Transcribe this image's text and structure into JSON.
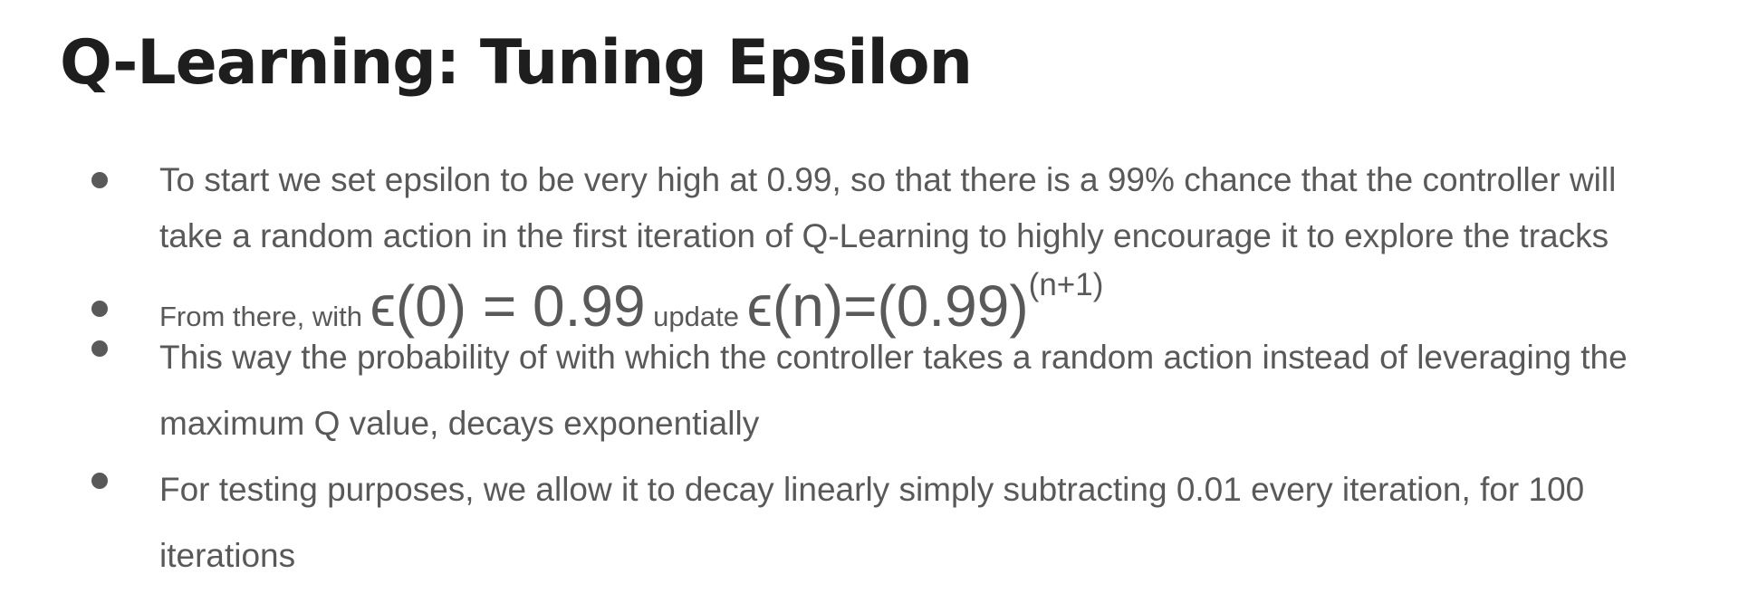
{
  "slide": {
    "title": "Q-Learning: Tuning Epsilon",
    "bullets": {
      "b1": {
        "line1": "To start we set epsilon to be very high at 0.99, so that there is a 99% chance that the controller will",
        "line2": "take a random action in the first iteration of Q-Learning to highly encourage it to explore the tracks"
      },
      "b2": {
        "prefix": "From there, with ",
        "formula1": "ϵ(0) = 0.99",
        "middle": " update ",
        "formula2": "ϵ(n)=(0.99)",
        "superscript": "(n+1)"
      },
      "b3": {
        "line1": "This way the probability of with which the controller takes a random action instead of leveraging the",
        "line2": "maximum Q value, decays exponentially"
      },
      "b4": {
        "line1": "For testing purposes, we allow it to decay linearly simply subtracting 0.01 every iteration, for 100",
        "line2": "iterations"
      }
    }
  },
  "colors": {
    "title": "#1e1e1e",
    "body_text": "#595959",
    "background": "#ffffff"
  }
}
